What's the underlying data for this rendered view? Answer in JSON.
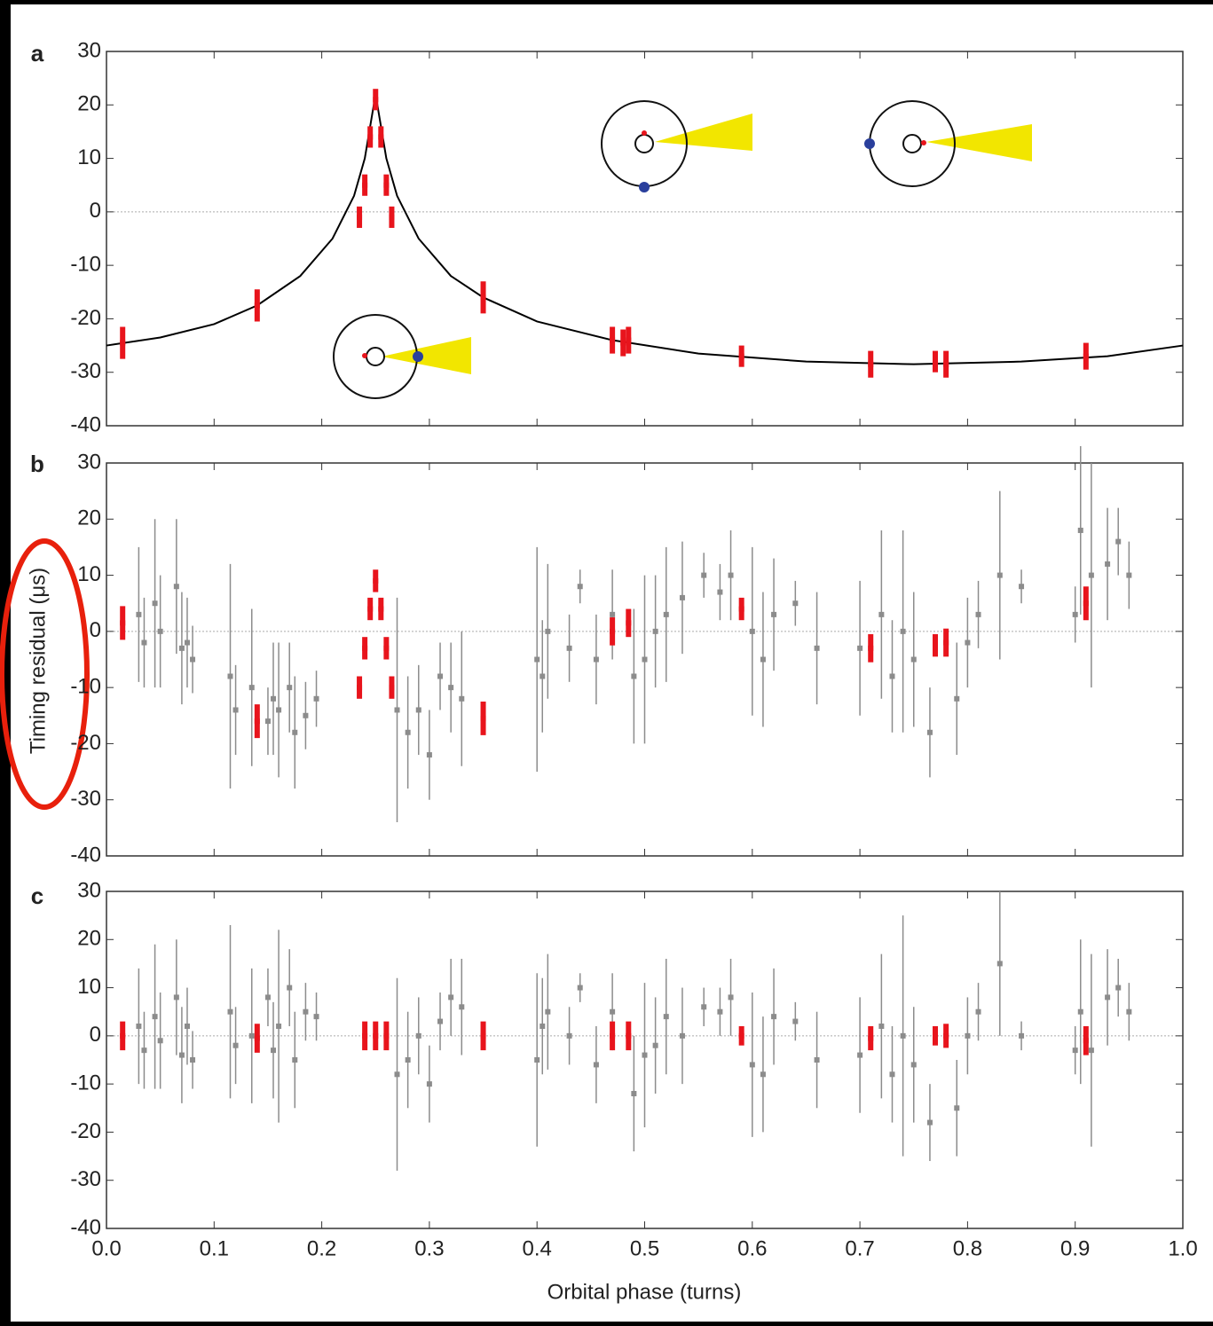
{
  "chart_data": [
    {
      "type": "scatter",
      "panel_label": "a",
      "xlim": [
        0,
        1
      ],
      "ylim": [
        -40,
        30
      ],
      "yticks": [
        -40,
        -30,
        -20,
        -10,
        0,
        10,
        20,
        30
      ],
      "series": [
        {
          "type": "line",
          "color": "#000000",
          "x": [
            0,
            0.05,
            0.1,
            0.14,
            0.18,
            0.21,
            0.23,
            0.24,
            0.25,
            0.26,
            0.27,
            0.29,
            0.32,
            0.35,
            0.4,
            0.47,
            0.55,
            0.65,
            0.75,
            0.85,
            0.93,
            1.0
          ],
          "values": [
            -25,
            -23.5,
            -21,
            -17.5,
            -12,
            -5,
            3,
            10,
            22,
            10,
            3,
            -5,
            -12,
            -16,
            -20.5,
            -24,
            -26.5,
            -28,
            -28.5,
            -28,
            -27,
            -25
          ]
        },
        {
          "color": "#e8141c",
          "x": [
            0.015,
            0.14,
            0.235,
            0.24,
            0.245,
            0.25,
            0.255,
            0.26,
            0.265,
            0.35,
            0.47,
            0.48,
            0.485,
            0.59,
            0.71,
            0.77,
            0.78,
            0.91
          ],
          "values": [
            -24.5,
            -17.5,
            -1,
            5,
            14,
            21,
            14,
            5,
            -1,
            -16,
            -24,
            -24.5,
            -24,
            -27,
            -28.5,
            -28,
            -28.5,
            -27
          ],
          "errors": [
            3,
            3,
            2,
            2,
            2,
            2,
            2,
            2,
            2,
            3,
            2.5,
            2.5,
            2.5,
            2,
            2.5,
            2,
            2.5,
            2.5
          ]
        }
      ]
    },
    {
      "type": "scatter",
      "panel_label": "b",
      "ylabel": "Timing residual (μs)",
      "xlim": [
        0,
        1
      ],
      "ylim": [
        -40,
        30
      ],
      "yticks": [
        -40,
        -30,
        -20,
        -10,
        0,
        10,
        20,
        30
      ],
      "series": [
        {
          "color": "#8c8c8c",
          "x": [
            0.03,
            0.035,
            0.045,
            0.05,
            0.065,
            0.07,
            0.075,
            0.08,
            0.115,
            0.12,
            0.135,
            0.15,
            0.155,
            0.16,
            0.17,
            0.175,
            0.185,
            0.195,
            0.27,
            0.28,
            0.29,
            0.3,
            0.31,
            0.32,
            0.33,
            0.4,
            0.405,
            0.41,
            0.43,
            0.44,
            0.455,
            0.47,
            0.49,
            0.5,
            0.51,
            0.52,
            0.535,
            0.555,
            0.57,
            0.58,
            0.6,
            0.61,
            0.62,
            0.64,
            0.66,
            0.7,
            0.72,
            0.73,
            0.74,
            0.75,
            0.765,
            0.79,
            0.8,
            0.81,
            0.83,
            0.85,
            0.9,
            0.905,
            0.915,
            0.93,
            0.94,
            0.95
          ],
          "values": [
            3,
            -2,
            5,
            0,
            8,
            -3,
            -2,
            -5,
            -8,
            -14,
            -10,
            -16,
            -12,
            -14,
            -10,
            -18,
            -15,
            -12,
            -14,
            -18,
            -14,
            -22,
            -8,
            -10,
            -12,
            -5,
            -8,
            0,
            -3,
            8,
            -5,
            3,
            -8,
            -5,
            0,
            3,
            6,
            10,
            7,
            10,
            0,
            -5,
            3,
            5,
            -3,
            -3,
            3,
            -8,
            0,
            -5,
            -18,
            -12,
            -2,
            3,
            10,
            8,
            3,
            18,
            10,
            12,
            16,
            10
          ],
          "errors": [
            12,
            8,
            15,
            10,
            12,
            10,
            8,
            6,
            20,
            8,
            14,
            6,
            10,
            12,
            8,
            10,
            6,
            5,
            20,
            10,
            8,
            8,
            6,
            8,
            12,
            20,
            10,
            12,
            6,
            3,
            8,
            8,
            12,
            15,
            10,
            12,
            10,
            4,
            5,
            8,
            15,
            12,
            10,
            4,
            10,
            12,
            15,
            10,
            18,
            12,
            8,
            10,
            8,
            6,
            15,
            3,
            5,
            15,
            20,
            10,
            6,
            6
          ]
        },
        {
          "color": "#e8141c",
          "x": [
            0.015,
            0.14,
            0.235,
            0.24,
            0.245,
            0.25,
            0.255,
            0.26,
            0.265,
            0.35,
            0.47,
            0.485,
            0.59,
            0.71,
            0.77,
            0.78,
            0.91
          ],
          "values": [
            1.5,
            -16,
            -10,
            -3,
            4,
            9,
            4,
            -3,
            -10,
            -15.5,
            0,
            1.5,
            4,
            -3,
            -2.5,
            -2,
            5
          ],
          "errors": [
            3,
            3,
            2,
            2,
            2,
            2,
            2,
            2,
            2,
            3,
            2.5,
            2.5,
            2,
            2.5,
            2,
            2.5,
            3
          ]
        }
      ]
    },
    {
      "type": "scatter",
      "panel_label": "c",
      "xlabel": "Orbital phase (turns)",
      "xlim": [
        0,
        1
      ],
      "ylim": [
        -40,
        30
      ],
      "yticks": [
        -40,
        -30,
        -20,
        -10,
        0,
        10,
        20,
        30
      ],
      "xticks": [
        {
          "value": 0,
          "label": "0.0"
        },
        0.1,
        0.2,
        0.3,
        0.4,
        0.5,
        0.6,
        0.7,
        0.8,
        0.9,
        {
          "value": 1,
          "label": "1.0"
        }
      ],
      "series": [
        {
          "color": "#8c8c8c",
          "x": [
            0.03,
            0.035,
            0.045,
            0.05,
            0.065,
            0.07,
            0.075,
            0.08,
            0.115,
            0.12,
            0.135,
            0.15,
            0.155,
            0.16,
            0.17,
            0.175,
            0.185,
            0.195,
            0.27,
            0.28,
            0.29,
            0.3,
            0.31,
            0.32,
            0.33,
            0.4,
            0.405,
            0.41,
            0.43,
            0.44,
            0.455,
            0.47,
            0.49,
            0.5,
            0.51,
            0.52,
            0.535,
            0.555,
            0.57,
            0.58,
            0.6,
            0.61,
            0.62,
            0.64,
            0.66,
            0.7,
            0.72,
            0.73,
            0.74,
            0.75,
            0.765,
            0.79,
            0.8,
            0.81,
            0.83,
            0.85,
            0.9,
            0.905,
            0.915,
            0.93,
            0.94,
            0.95
          ],
          "values": [
            2,
            -3,
            4,
            -1,
            8,
            -4,
            2,
            -5,
            5,
            -2,
            0,
            8,
            -3,
            2,
            10,
            -5,
            5,
            4,
            -8,
            -5,
            0,
            -10,
            3,
            8,
            6,
            -5,
            2,
            5,
            0,
            10,
            -6,
            5,
            -12,
            -4,
            -2,
            4,
            0,
            6,
            5,
            8,
            -6,
            -8,
            4,
            3,
            -5,
            -4,
            2,
            -8,
            0,
            -6,
            -18,
            -15,
            0,
            5,
            15,
            0,
            -3,
            5,
            -3,
            8,
            10,
            5
          ],
          "errors": [
            12,
            8,
            15,
            10,
            12,
            10,
            8,
            6,
            18,
            8,
            14,
            6,
            10,
            20,
            8,
            10,
            6,
            5,
            20,
            10,
            8,
            8,
            6,
            8,
            10,
            18,
            10,
            12,
            6,
            3,
            8,
            8,
            12,
            15,
            10,
            12,
            10,
            4,
            5,
            8,
            15,
            12,
            10,
            4,
            10,
            12,
            15,
            10,
            25,
            12,
            8,
            10,
            8,
            6,
            15,
            3,
            5,
            15,
            20,
            10,
            6,
            6
          ]
        },
        {
          "color": "#e8141c",
          "x": [
            0.015,
            0.14,
            0.24,
            0.25,
            0.26,
            0.35,
            0.47,
            0.485,
            0.59,
            0.71,
            0.77,
            0.78,
            0.91
          ],
          "values": [
            0,
            -0.5,
            0,
            0,
            0,
            0,
            0,
            0,
            0,
            -0.5,
            0,
            0,
            -1
          ],
          "errors": [
            3,
            3,
            3,
            3,
            3,
            3,
            3,
            3,
            2,
            2.5,
            2,
            2.5,
            3
          ]
        }
      ]
    }
  ]
}
